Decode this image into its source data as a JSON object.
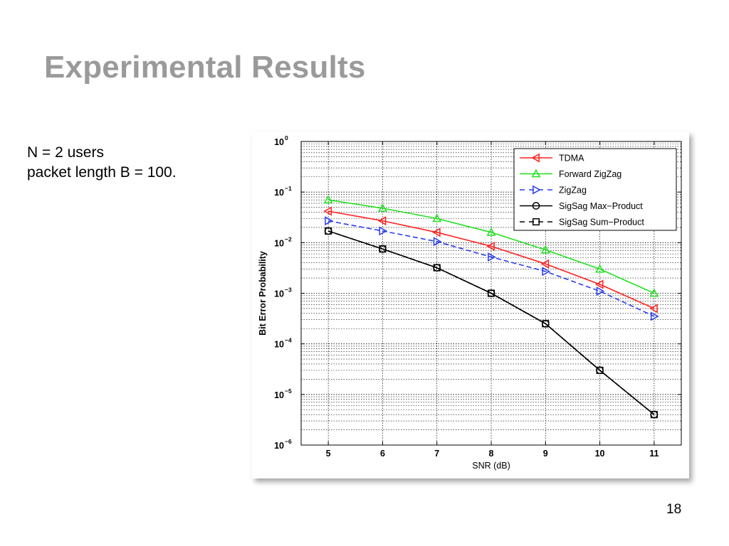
{
  "slide": {
    "title": "Experimental Results",
    "body_lines": [
      "N = 2 users",
      "packet length B = 100."
    ],
    "page_number": "18"
  },
  "chart_data": {
    "type": "line",
    "title": "",
    "xlabel": "SNR (dB)",
    "ylabel": "Bit Error Probability",
    "yscale": "log",
    "x": [
      5,
      6,
      7,
      8,
      9,
      10,
      11
    ],
    "xlim": [
      4.5,
      11.5
    ],
    "ylim": [
      1e-06,
      1
    ],
    "ytick_exponents": [
      0,
      -1,
      -2,
      -3,
      -4,
      -5,
      -6
    ],
    "grid": true,
    "legend_position": "top-right",
    "series": [
      {
        "name": "TDMA",
        "color": "#ff2020",
        "dash": "solid",
        "marker": "triangle-left",
        "values": [
          0.042,
          0.027,
          0.016,
          0.0085,
          0.0038,
          0.0015,
          0.0005
        ]
      },
      {
        "name": "Forward ZigZag",
        "color": "#20e020",
        "dash": "solid",
        "marker": "triangle-up",
        "values": [
          0.07,
          0.048,
          0.03,
          0.016,
          0.0072,
          0.003,
          0.001
        ]
      },
      {
        "name": "ZigZag",
        "color": "#2a3ef0",
        "dash": "dashed",
        "marker": "triangle-right",
        "values": [
          0.027,
          0.017,
          0.0105,
          0.0052,
          0.0027,
          0.0011,
          0.00035
        ]
      },
      {
        "name": "SigSag Max−Product",
        "color": "#000000",
        "dash": "solid",
        "marker": "circle",
        "values": [
          0.017,
          0.0075,
          0.0032,
          0.001,
          0.00025,
          3e-05,
          4e-06
        ]
      },
      {
        "name": "SigSag Sum−Product",
        "color": "#000000",
        "dash": "dashed",
        "marker": "square",
        "values": [
          0.017,
          0.0075,
          0.0032,
          0.001,
          0.00025,
          3e-05,
          4e-06
        ]
      }
    ]
  }
}
